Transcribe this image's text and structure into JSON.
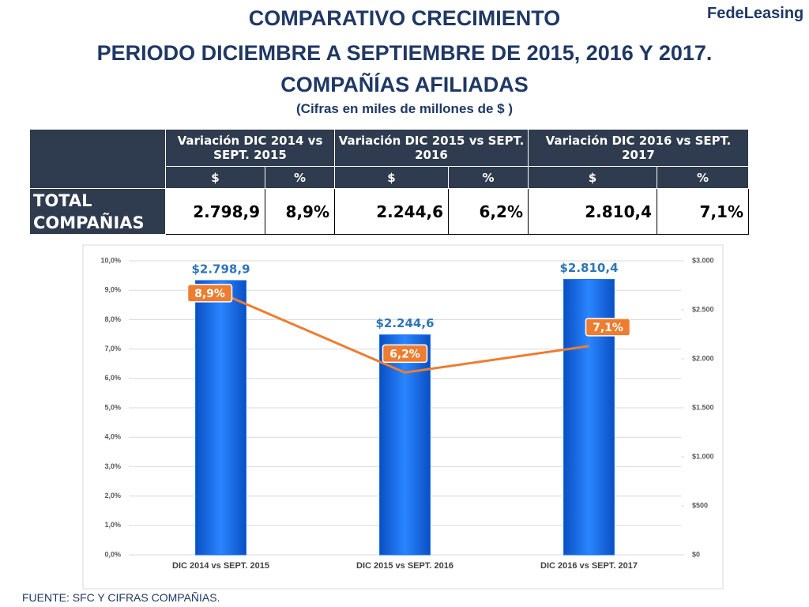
{
  "header": {
    "title_lines": [
      "COMPARATIVO CRECIMIENTO",
      "PERIODO DICIEMBRE A SEPTIEMBRE DE 2015, 2016 Y 2017.",
      "COMPAÑÍAS AFILIADAS"
    ],
    "subtitle": "(Cifras en miles de millones de $ )",
    "logo": [
      "Fede",
      "Leasing"
    ]
  },
  "table": {
    "group_headers": [
      "Variación DIC 2014 vs SEPT. 2015",
      "Variación DIC 2015 vs SEPT. 2016",
      "Variación DIC 2016 vs SEPT. 2017"
    ],
    "sub_headers": [
      "$",
      "%",
      "$",
      "%",
      "$",
      "%"
    ],
    "row_label": "TOTAL COMPAÑIAS",
    "row": [
      "2.798,9",
      "8,9%",
      "2.244,6",
      "6,2%",
      "2.810,4",
      "7,1%"
    ]
  },
  "chart_data": {
    "type": "bar-line",
    "categories": [
      "DIC 2014 vs SEPT. 2015",
      "DIC 2015 vs SEPT. 2016",
      "DIC 2016 vs SEPT. 2017"
    ],
    "series": [
      {
        "type": "bar",
        "axis": "y2",
        "color": "#1a6ff0",
        "values": [
          2798.9,
          2244.6,
          2810.4
        ],
        "value_labels": [
          "$2.798,9",
          "$2.244,6",
          "$2.810,4"
        ]
      },
      {
        "type": "line",
        "axis": "y",
        "color": "#ed7d31",
        "values": [
          8.9,
          6.2,
          7.1
        ],
        "value_labels": [
          "8,9%",
          "6,2%",
          "7,1%"
        ]
      }
    ],
    "ylim": [
      0,
      10
    ],
    "yticks": [
      {
        "value": 0,
        "label": "0,0%"
      },
      {
        "value": 1,
        "label": "1,0%"
      },
      {
        "value": 2,
        "label": "2,0%"
      },
      {
        "value": 3,
        "label": "3,0%"
      },
      {
        "value": 4,
        "label": "4,0%"
      },
      {
        "value": 5,
        "label": "5,0%"
      },
      {
        "value": 6,
        "label": "6,0%"
      },
      {
        "value": 7,
        "label": "7,0%"
      },
      {
        "value": 8,
        "label": "8,0%"
      },
      {
        "value": 9,
        "label": "9,0%"
      },
      {
        "value": 10,
        "label": "10,0%"
      }
    ],
    "y2lim": [
      0,
      3000
    ],
    "y2ticks": [
      {
        "value": 0,
        "label": "$0"
      },
      {
        "value": 500,
        "label": "$500"
      },
      {
        "value": 1000,
        "label": "$1.000"
      },
      {
        "value": 1500,
        "label": "$1.500"
      },
      {
        "value": 2000,
        "label": "$2.000"
      },
      {
        "value": 2500,
        "label": "$2.500"
      },
      {
        "value": 3000,
        "label": "$3.000"
      }
    ],
    "grid": true
  },
  "footer": "FUENTE: SFC Y CIFRAS COMPAÑIAS."
}
